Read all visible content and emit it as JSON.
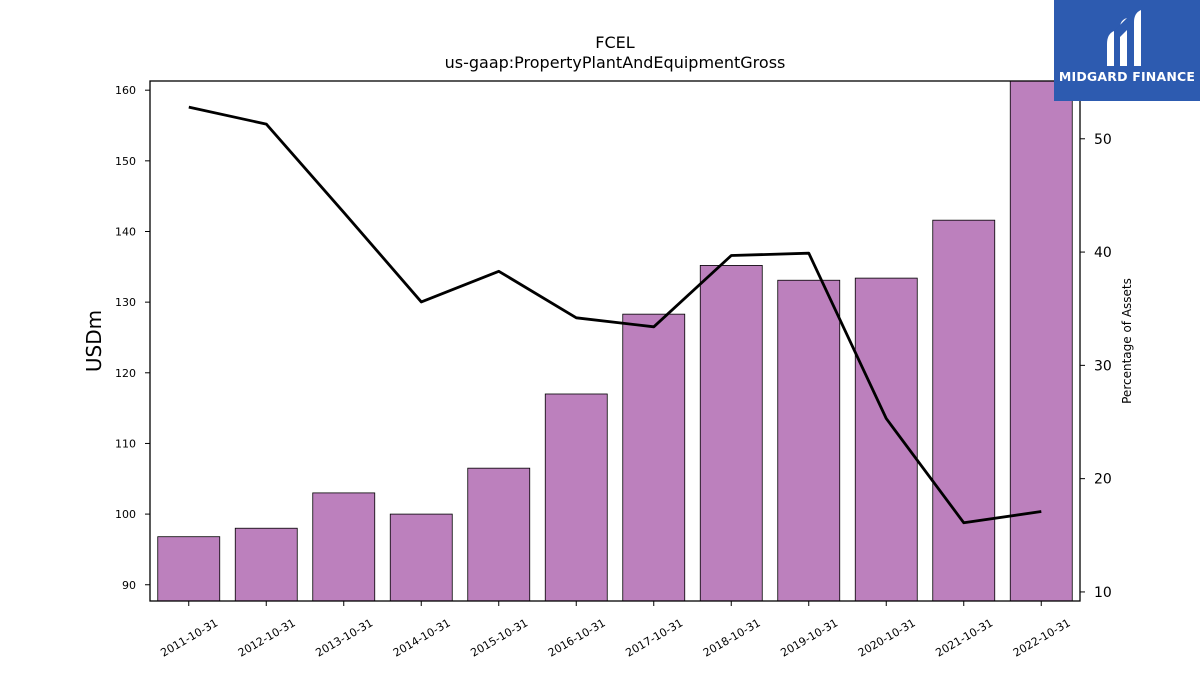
{
  "chart_data": {
    "type": "bar",
    "title": "FCEL",
    "subtitle": "us-gaap:PropertyPlantAndEquipmentGross",
    "ylabel": "USDm",
    "y2label": "Percentage of Assets",
    "categories": [
      "2011-10-31",
      "2012-10-31",
      "2013-10-31",
      "2014-10-31",
      "2015-10-31",
      "2016-10-31",
      "2017-10-31",
      "2018-10-31",
      "2019-10-31",
      "2020-10-31",
      "2021-10-31",
      "2022-10-31"
    ],
    "series": [
      {
        "axis": "left",
        "kind": "bar",
        "color": "#bc80bd",
        "values": [
          96.8,
          98.0,
          103.0,
          100.0,
          106.5,
          117.0,
          128.3,
          135.2,
          133.1,
          133.4,
          141.6,
          161.3
        ]
      },
      {
        "axis": "right",
        "kind": "line",
        "color": "#000000",
        "values": [
          52.8,
          51.3,
          43.5,
          35.6,
          38.3,
          34.2,
          33.4,
          39.7,
          39.9,
          25.3,
          16.1,
          17.1
        ]
      }
    ],
    "ylim": [
      87.7,
      161.3
    ],
    "yticks": [
      90,
      100,
      110,
      120,
      130,
      140,
      150,
      160
    ],
    "y2lim": [
      9.2,
      55.1
    ],
    "y2ticks": [
      10,
      20,
      30,
      40,
      50
    ],
    "grid": false
  },
  "logo": {
    "text": "MIDGARD FINANCE",
    "background": "#2d5bb0"
  }
}
